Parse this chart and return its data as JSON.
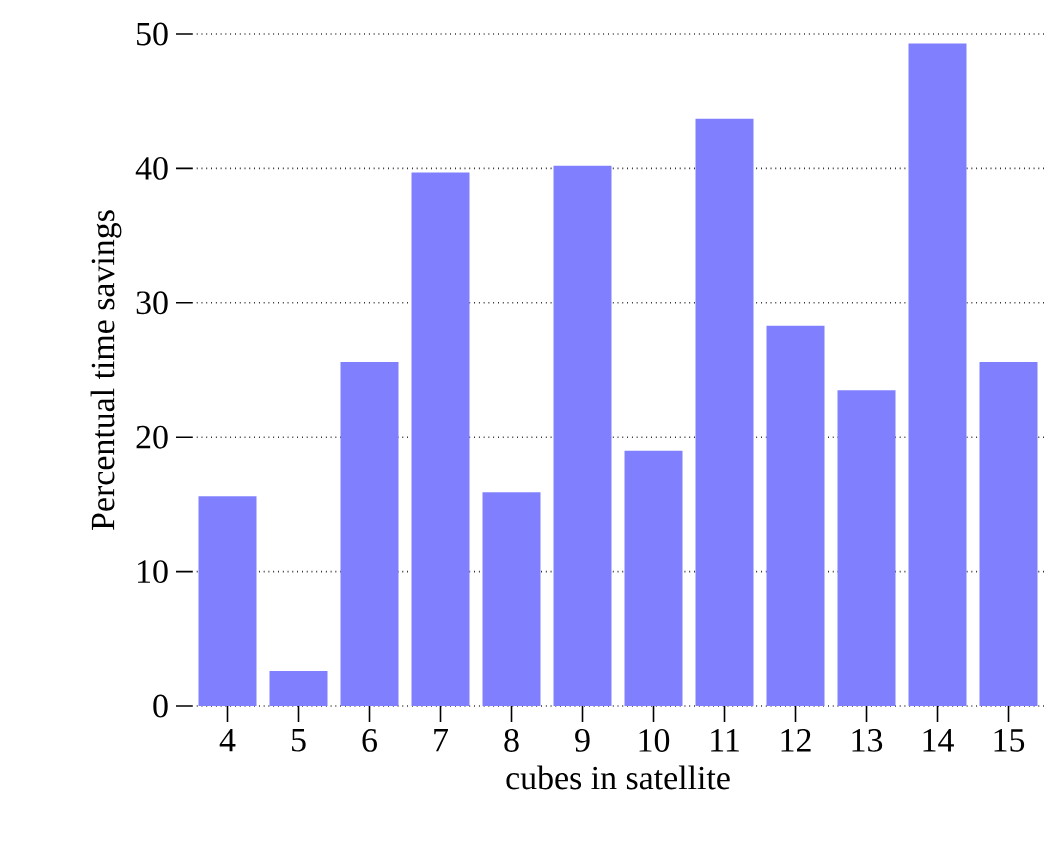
{
  "chart_data": {
    "type": "bar",
    "xlabel": "cubes in satellite",
    "ylabel": "Percentual time savings",
    "categories": [
      "4",
      "5",
      "6",
      "7",
      "8",
      "9",
      "10",
      "11",
      "12",
      "13",
      "14",
      "15"
    ],
    "values": [
      15.6,
      2.6,
      25.6,
      39.7,
      15.9,
      40.2,
      19.0,
      43.7,
      28.3,
      23.5,
      49.3,
      25.6
    ],
    "color": "#8080ff",
    "ylim": [
      0,
      50
    ],
    "yticks": [
      0,
      10,
      20,
      30,
      40,
      50
    ],
    "grid": "y"
  }
}
